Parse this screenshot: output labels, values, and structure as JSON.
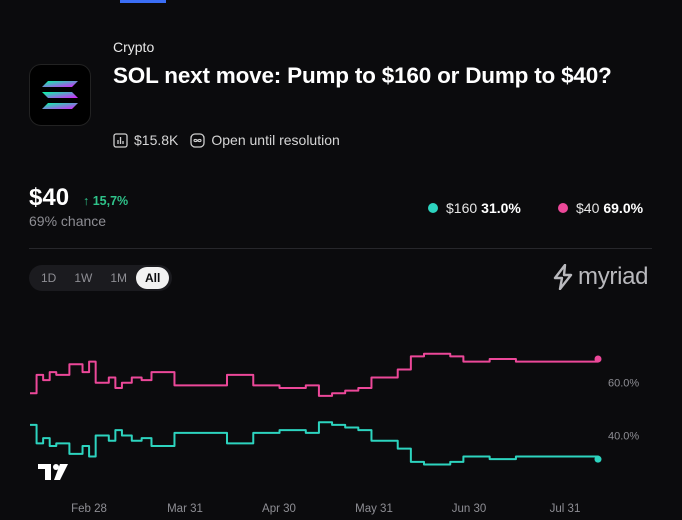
{
  "category": "Crypto",
  "title": "SOL next move: Pump to $160 or Dump to $40?",
  "meta": {
    "volume": "$15.8K",
    "resolution": "Open until resolution"
  },
  "headline": {
    "price": "$40",
    "delta": "↑ 15,7%",
    "chance": "69% chance"
  },
  "legend": [
    {
      "label": "$160",
      "value": "31.0%",
      "color": "#2dd4bf"
    },
    {
      "label": "$40",
      "value": "69.0%",
      "color": "#ec4899"
    }
  ],
  "timeframes": [
    "1D",
    "1W",
    "1M",
    "All"
  ],
  "active_timeframe": "All",
  "brand": "myriad",
  "icons": {
    "logo": "solana-logo-icon",
    "volume": "bar-chart-icon",
    "resolution": "infinity-icon",
    "brand": "myriad-logo-icon",
    "watermark": "tradingview-logo-icon"
  },
  "chart_data": {
    "type": "line",
    "x_ticks": [
      "Feb 28",
      "Mar 31",
      "Apr 30",
      "May 31",
      "Jun 30",
      "Jul 31"
    ],
    "y_ticks": [
      "40.0%",
      "60.0%"
    ],
    "ylim": [
      25,
      80
    ],
    "series": [
      {
        "name": "$40",
        "color": "#ec4899",
        "x": [
          0,
          2,
          4,
          6,
          8,
          10,
          12,
          14,
          16,
          18,
          20,
          22,
          24,
          26,
          28,
          31,
          34,
          37,
          40,
          44,
          48,
          52,
          56,
          60,
          64,
          68,
          72,
          76,
          80,
          84,
          88,
          92,
          96,
          100,
          104,
          108,
          112,
          116,
          120,
          124,
          128,
          132,
          136,
          140,
          144,
          148,
          152,
          156,
          160,
          164,
          168,
          170,
          173
        ],
        "values": [
          56,
          63,
          61,
          64,
          63,
          63,
          67,
          67,
          64,
          68,
          60,
          60,
          62,
          58,
          60,
          62,
          61,
          64,
          64,
          59,
          59,
          59,
          59,
          63,
          63,
          59,
          59,
          58,
          58,
          59,
          55,
          56,
          57,
          58,
          62,
          62,
          65,
          70,
          71,
          71,
          70,
          68,
          68,
          69,
          69,
          68,
          68,
          68,
          68,
          68,
          68,
          68,
          69
        ]
      },
      {
        "name": "$160",
        "color": "#2dd4bf",
        "x": [
          0,
          2,
          4,
          6,
          8,
          10,
          12,
          14,
          16,
          18,
          20,
          22,
          24,
          26,
          28,
          31,
          34,
          37,
          40,
          44,
          48,
          52,
          56,
          60,
          64,
          68,
          72,
          76,
          80,
          84,
          88,
          92,
          96,
          100,
          104,
          108,
          112,
          116,
          120,
          124,
          128,
          132,
          136,
          140,
          144,
          148,
          152,
          156,
          160,
          164,
          168,
          170,
          173
        ],
        "values": [
          44,
          37,
          39,
          36,
          37,
          37,
          33,
          33,
          36,
          32,
          40,
          40,
          38,
          42,
          40,
          38,
          39,
          36,
          36,
          41,
          41,
          41,
          41,
          37,
          37,
          41,
          41,
          42,
          42,
          41,
          45,
          44,
          43,
          42,
          38,
          38,
          35,
          30,
          29,
          29,
          30,
          32,
          32,
          31,
          31,
          32,
          32,
          32,
          32,
          32,
          32,
          32,
          31
        ]
      }
    ],
    "grid": false,
    "legend_position": "top-right"
  }
}
